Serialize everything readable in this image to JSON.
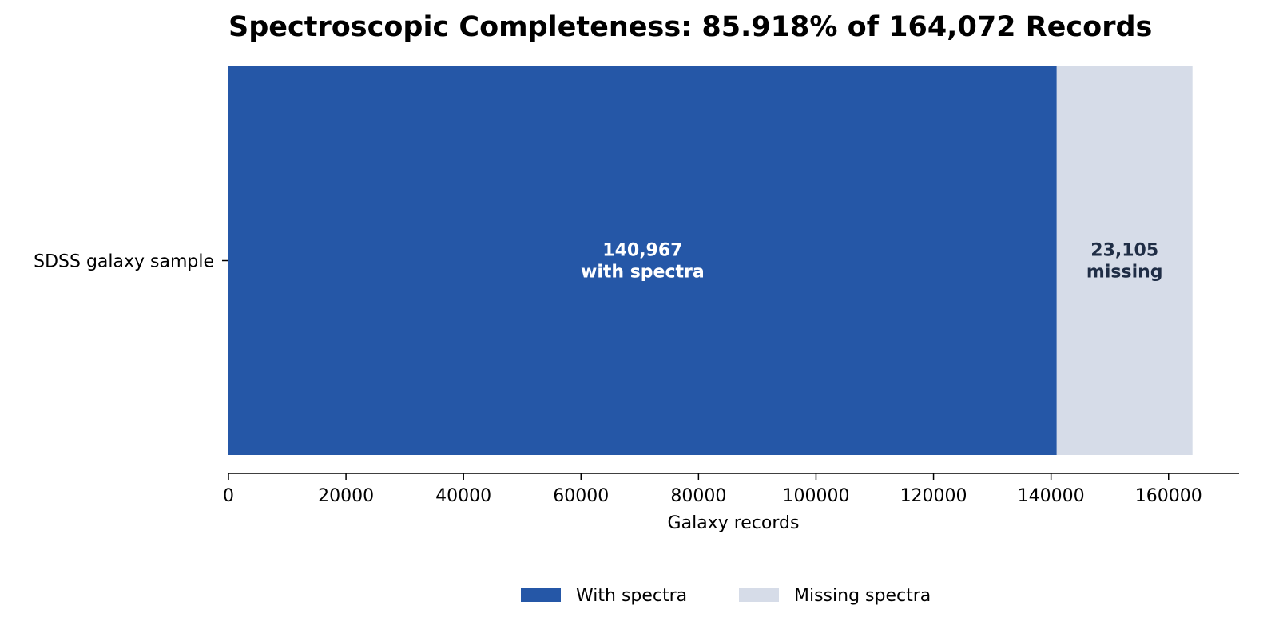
{
  "chart_data": {
    "type": "bar",
    "orientation": "horizontal",
    "stacked": true,
    "title": "Spectroscopic Completeness: 85.918% of 164,072 Records",
    "xlabel": "Galaxy records",
    "ylabel": "",
    "categories": [
      "SDSS galaxy sample"
    ],
    "xlim": [
      0,
      172000
    ],
    "xticks": [
      0,
      20000,
      40000,
      60000,
      80000,
      100000,
      120000,
      140000,
      160000
    ],
    "xtick_labels": [
      "0",
      "20000",
      "40000",
      "60000",
      "80000",
      "100000",
      "120000",
      "140000",
      "160000"
    ],
    "grid": false,
    "legend_position": "bottom-center",
    "series": [
      {
        "name": "With spectra",
        "values": [
          140967
        ],
        "color": "#2557a7",
        "label_lines": [
          "140,967",
          "with spectra"
        ],
        "label_color": "#ffffff"
      },
      {
        "name": "Missing spectra",
        "values": [
          23105
        ],
        "color": "#d6dce8",
        "label_lines": [
          "23,105",
          "missing"
        ],
        "label_color": "#1f2d45"
      }
    ]
  }
}
